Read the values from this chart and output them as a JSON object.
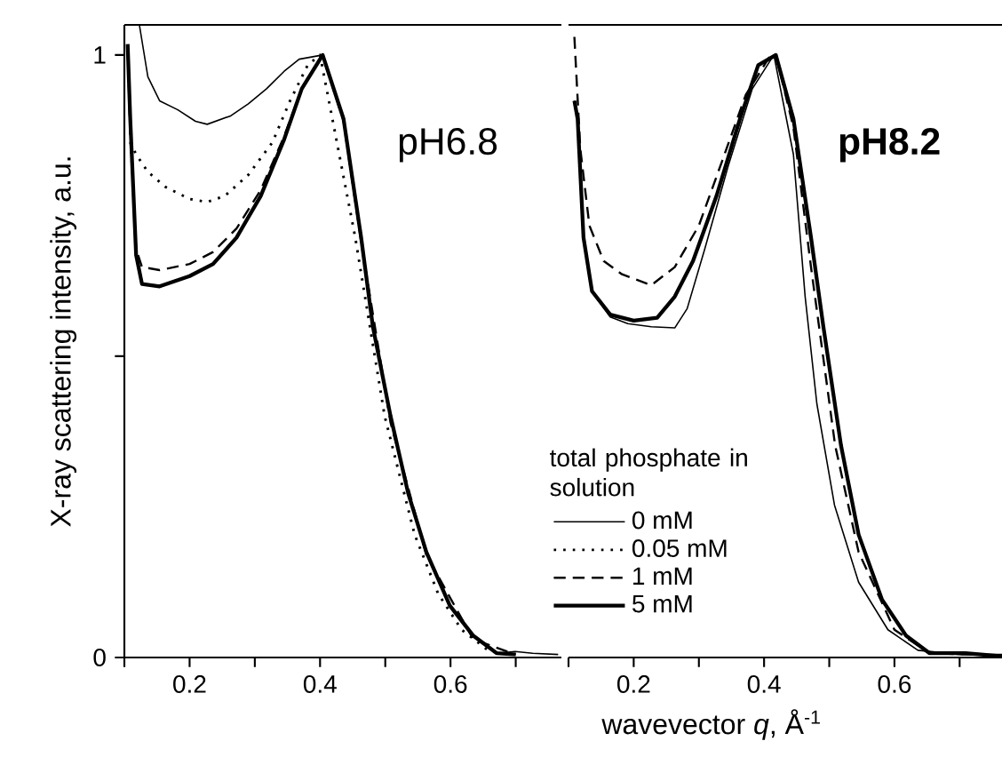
{
  "chart_data": [
    {
      "type": "line",
      "ylabel": "X-ray scattering intensity, a.u.",
      "legend_title": "total phosphate in solution",
      "annotations": [
        "pH6.8"
      ],
      "xlim": [
        0.1,
        0.77
      ],
      "ylim": [
        0,
        1.05
      ],
      "xticks": [
        {
          "value": 0.1,
          "label": null
        },
        0.2,
        {
          "value": 0.3,
          "label": null
        },
        0.4,
        {
          "value": 0.5,
          "label": null
        },
        0.6,
        {
          "value": 0.7,
          "label": null
        }
      ],
      "yticks": [
        0,
        {
          "value": 0.5,
          "label": null
        },
        1
      ],
      "legend": "bottom right",
      "grid": false,
      "marker": "none",
      "series": [
        {
          "name": "0 mM",
          "color": "#000000",
          "line_style": "solid",
          "x": [
            0.123,
            0.136,
            0.154,
            0.182,
            0.209,
            0.227,
            0.263,
            0.29,
            0.318,
            0.345,
            0.368,
            0.404,
            0.436,
            0.463,
            0.481,
            0.508,
            0.535,
            0.563,
            0.599,
            0.635,
            0.671,
            0.699,
            0.726,
            0.765
          ],
          "values": [
            1.05,
            0.964,
            0.924,
            0.909,
            0.89,
            0.885,
            0.899,
            0.919,
            0.944,
            0.973,
            0.993,
            1.0,
            0.894,
            0.697,
            0.549,
            0.401,
            0.273,
            0.175,
            0.086,
            0.036,
            0.007,
            0.01,
            0.007,
            0.005
          ]
        },
        {
          "name": "0.05 mM",
          "color": "#000000",
          "line_style": "dotted",
          "x": [
            0.109,
            0.118,
            0.136,
            0.163,
            0.2,
            0.227,
            0.254,
            0.29,
            0.327,
            0.354,
            0.381,
            0.4,
            0.454,
            0.499,
            0.545,
            0.581,
            0.617,
            0.66
          ],
          "values": [
            0.855,
            0.835,
            0.806,
            0.781,
            0.761,
            0.756,
            0.766,
            0.801,
            0.855,
            0.924,
            0.983,
            1.0,
            0.697,
            0.401,
            0.204,
            0.106,
            0.046,
            0.01
          ]
        },
        {
          "name": "1 mM",
          "color": "#000000",
          "line_style": "dashed",
          "x": [
            0.105,
            0.109,
            0.118,
            0.127,
            0.154,
            0.2,
            0.236,
            0.272,
            0.309,
            0.345,
            0.372,
            0.404,
            0.436,
            0.463,
            0.508,
            0.563,
            0.635,
            0.7
          ],
          "values": [
            1.013,
            0.865,
            0.678,
            0.648,
            0.643,
            0.653,
            0.673,
            0.712,
            0.776,
            0.865,
            0.944,
            1.0,
            0.89,
            0.69,
            0.39,
            0.17,
            0.03,
            0.005
          ]
        },
        {
          "name": "5 mM",
          "color": "#000000",
          "line_style": "solid",
          "x": [
            0.105,
            0.109,
            0.118,
            0.127,
            0.154,
            0.2,
            0.236,
            0.272,
            0.309,
            0.345,
            0.372,
            0.404,
            0.436,
            0.463,
            0.481,
            0.508,
            0.535,
            0.563,
            0.599,
            0.635,
            0.671,
            0.7
          ],
          "values": [
            1.018,
            0.894,
            0.668,
            0.62,
            0.616,
            0.633,
            0.653,
            0.697,
            0.766,
            0.86,
            0.944,
            1.0,
            0.894,
            0.697,
            0.549,
            0.401,
            0.273,
            0.175,
            0.086,
            0.036,
            0.007,
            0.005
          ]
        }
      ]
    },
    {
      "type": "line",
      "xlabel": "wavevector *q*, Å$^{-1}$",
      "annotations": [
        "**pH8.2**"
      ],
      "xlim": [
        0.1,
        0.765
      ],
      "ylim": [
        0,
        1.05
      ],
      "xticks": [
        {
          "value": 0.1,
          "label": null
        },
        0.2,
        {
          "value": 0.3,
          "label": null
        },
        0.4,
        {
          "value": 0.5,
          "label": null
        },
        0.6,
        {
          "value": 0.7,
          "label": null
        }
      ],
      "tick_labels": "x",
      "grid": false,
      "marker": "none",
      "series": [
        {
          "color": "#000000",
          "line_style": "solid",
          "x": [
            0.109,
            0.114,
            0.123,
            0.136,
            0.164,
            0.191,
            0.227,
            0.263,
            0.282,
            0.309,
            0.345,
            0.382,
            0.415,
            0.445,
            0.463,
            0.481,
            0.508,
            0.545,
            0.59,
            0.636,
            0.7,
            0.765
          ],
          "values": [
            0.924,
            0.894,
            0.697,
            0.608,
            0.565,
            0.554,
            0.549,
            0.547,
            0.579,
            0.678,
            0.816,
            0.944,
            1.0,
            0.835,
            0.599,
            0.421,
            0.253,
            0.125,
            0.046,
            0.012,
            0.005,
            0.005
          ]
        },
        {
          "color": "#000000",
          "line_style": "dashed",
          "x": [
            0.109,
            0.118,
            0.132,
            0.154,
            0.182,
            0.227,
            0.263,
            0.3,
            0.336,
            0.372,
            0.409,
            0.418,
            0.445,
            0.472,
            0.509,
            0.545,
            0.6,
            0.654,
            0.72
          ],
          "values": [
            1.03,
            0.845,
            0.717,
            0.658,
            0.636,
            0.618,
            0.648,
            0.717,
            0.825,
            0.934,
            0.998,
            1.0,
            0.88,
            0.648,
            0.352,
            0.175,
            0.046,
            0.007,
            0.005
          ]
        },
        {
          "color": "#000000",
          "line_style": "solid",
          "x": [
            0.109,
            0.114,
            0.123,
            0.136,
            0.164,
            0.2,
            0.236,
            0.263,
            0.291,
            0.327,
            0.363,
            0.391,
            0.418,
            0.445,
            0.472,
            0.491,
            0.518,
            0.545,
            0.581,
            0.618,
            0.654,
            0.709,
            0.765
          ],
          "values": [
            0.924,
            0.894,
            0.697,
            0.608,
            0.569,
            0.559,
            0.564,
            0.599,
            0.658,
            0.766,
            0.894,
            0.983,
            1.0,
            0.894,
            0.697,
            0.549,
            0.352,
            0.204,
            0.096,
            0.036,
            0.007,
            0.007,
            0.002
          ]
        }
      ]
    }
  ]
}
